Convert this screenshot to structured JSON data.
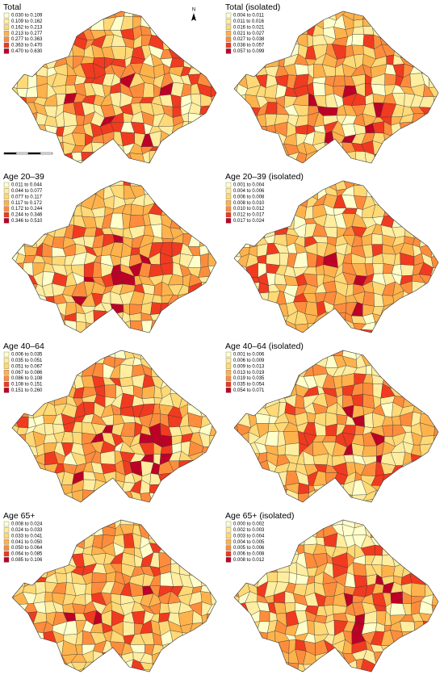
{
  "north_label": "N",
  "legend_colors": [
    "#ffffcc",
    "#ffeda0",
    "#fed976",
    "#feb24c",
    "#fd8d3c",
    "#f03b20",
    "#bd0026"
  ],
  "panels": [
    {
      "title": "Total",
      "legend": [
        "0.030 to 0.109",
        "0.109 to 0.162",
        "0.162 to 0.213",
        "0.213 to 0.277",
        "0.277 to 0.363",
        "0.363 to 0.470",
        "0.470 to 0.630"
      ]
    },
    {
      "title": "Total (isolated)",
      "legend": [
        "0.004 to 0.011",
        "0.011 to 0.016",
        "0.016 to 0.021",
        "0.021 to 0.027",
        "0.027 to 0.038",
        "0.038 to 0.057",
        "0.057 to 0.099"
      ]
    },
    {
      "title": "Age 20–39",
      "legend": [
        "0.011 to 0.044",
        "0.044 to 0.077",
        "0.077 to 0.117",
        "0.117 to 0.172",
        "0.172 to 0.244",
        "0.244 to 0.346",
        "0.346 to 0.510"
      ]
    },
    {
      "title": "Age 20–39 (isolated)",
      "legend": [
        "0.001 to 0.004",
        "0.004 to 0.006",
        "0.006 to 0.008",
        "0.008 to 0.010",
        "0.010 to 0.012",
        "0.012 to 0.017",
        "0.017 to 0.024"
      ]
    },
    {
      "title": "Age 40–64",
      "legend": [
        "0.006 to 0.035",
        "0.035 to 0.051",
        "0.051 to 0.067",
        "0.067 to 0.086",
        "0.086 to 0.108",
        "0.108 to 0.151",
        "0.151 to 0.260"
      ]
    },
    {
      "title": "Age 40–64 (isolated)",
      "legend": [
        "0.001 to 0.006",
        "0.006 to 0.009",
        "0.009 to 0.013",
        "0.013 to 0.019",
        "0.019 to 0.035",
        "0.035 to 0.054",
        "0.054 to 0.071"
      ]
    },
    {
      "title": "Age 65+",
      "legend": [
        "0.008 to 0.024",
        "0.024 to 0.033",
        "0.033 to 0.041",
        "0.041 to 0.050",
        "0.050 to 0.064",
        "0.064 to 0.085",
        "0.085 to 0.106"
      ]
    },
    {
      "title": "Age 65+ (isolated)",
      "legend": [
        "0.000 to 0.002",
        "0.002 to 0.003",
        "0.003 to 0.004",
        "0.004 to 0.005",
        "0.005 to 0.006",
        "0.006 to 0.008",
        "0.008 to 0.012"
      ]
    }
  ]
}
